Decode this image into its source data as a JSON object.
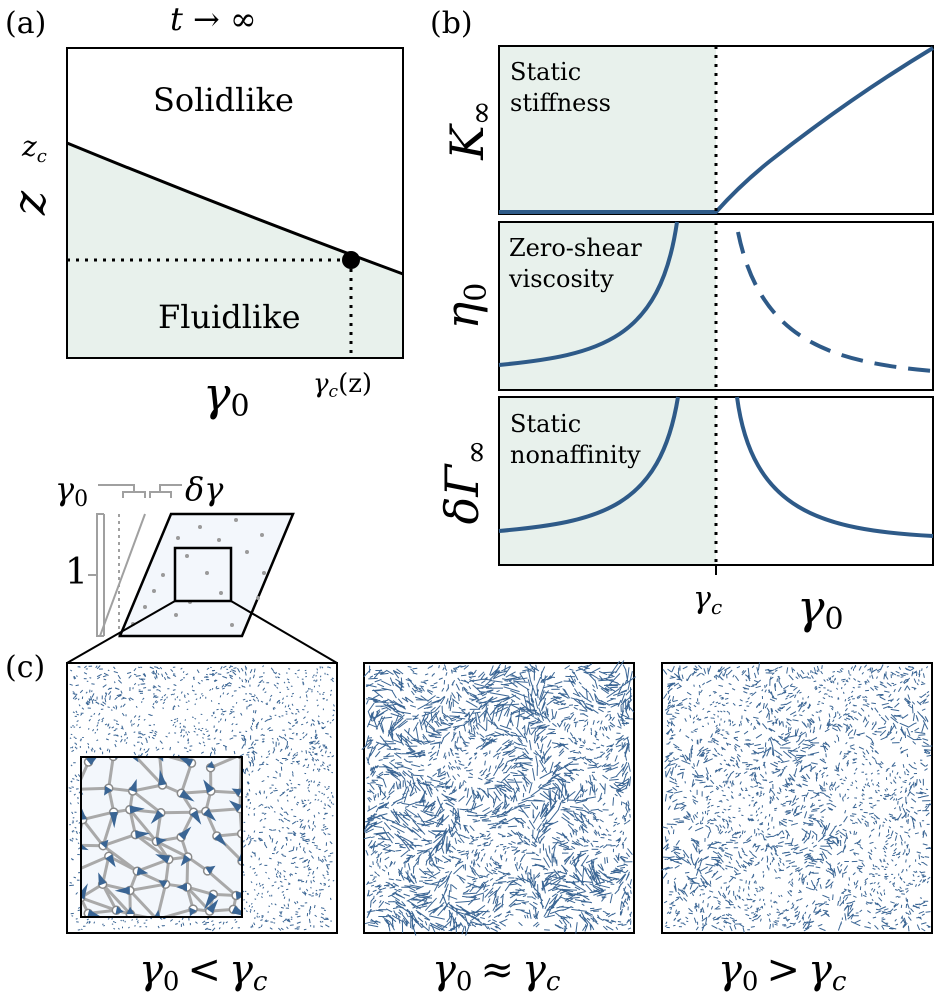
{
  "panel_a": {
    "label": "(a)",
    "title": "t → ∞",
    "z_axis_label": "z",
    "z_c_tick": "z",
    "z_c_sub": "c",
    "solid_label": "Solidlike",
    "fluid_label": "Fluidlike",
    "gamma_axis_label": "γ",
    "gamma_axis_sub": "0",
    "gamma_c_tick": "γ",
    "gamma_c_tick_sub": "c",
    "gamma_c_tick_suffix": "(z)"
  },
  "panel_b": {
    "label": "(b)",
    "rows": [
      {
        "ylabel": "K",
        "ylabel_sub": "∞",
        "text_line1": "Static",
        "text_line2": "stiffness"
      },
      {
        "ylabel": "η",
        "ylabel_sub": "0",
        "text_line1": "Zero-shear",
        "text_line2": "viscosity"
      },
      {
        "ylabel": "δΓ",
        "ylabel_sub": "∞",
        "text_line1": "Static",
        "text_line2": "nonaffinity"
      }
    ],
    "gamma_c_tick": "γ",
    "gamma_c_sub": "c",
    "gamma_axis_label": "γ",
    "gamma_axis_sub": "0"
  },
  "schematic": {
    "gamma0_label": "γ",
    "gamma0_sub": "0",
    "dgamma_label": "δγ",
    "one_label": "1"
  },
  "panel_c": {
    "label": "(c)",
    "captions": [
      {
        "g": "γ",
        "s": "0",
        "op": "<",
        "g2": "γ",
        "s2": "c"
      },
      {
        "g": "γ",
        "s": "0",
        "op": "≈",
        "g2": "γ",
        "s2": "c"
      },
      {
        "g": "γ",
        "s": "0",
        "op": ">",
        "g2": "γ",
        "s2": "c"
      }
    ]
  },
  "colors": {
    "fluid_fill": "#e8f1ec",
    "curve": "#2e5a88",
    "vector": "#3a6594",
    "schematic_gray": "#a0a0a0",
    "inset_bg": "#f3f7fc"
  }
}
